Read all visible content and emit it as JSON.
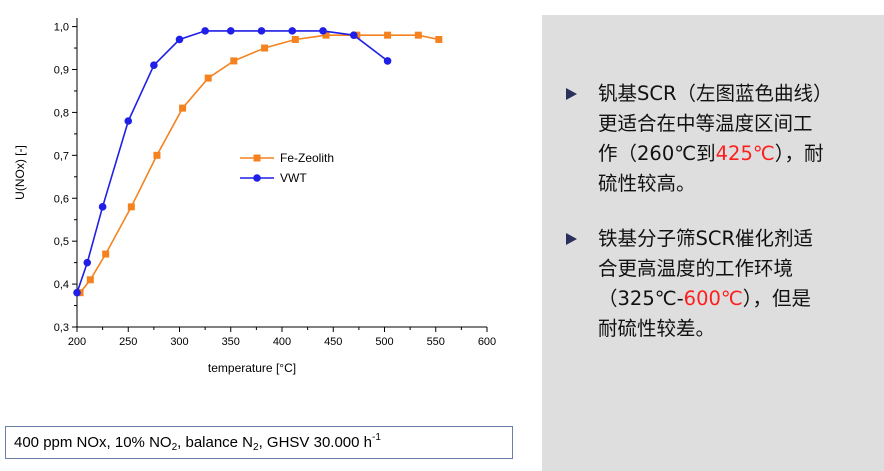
{
  "chart_data": {
    "type": "line",
    "xlabel": "temperature [°C]",
    "ylabel": "U(NOx) [-]",
    "xlim": [
      200,
      600
    ],
    "ylim": [
      0.3,
      1.0
    ],
    "xticks": [
      "200",
      "250",
      "300",
      "350",
      "400",
      "450",
      "500",
      "550",
      "600"
    ],
    "yticks": [
      "0,3",
      "0,4",
      "0,5",
      "0,6",
      "0,7",
      "0,8",
      "0,9",
      "1,0"
    ],
    "grid": false,
    "legend_position": "center",
    "series": [
      {
        "name": "Fe-Zeolith",
        "color": "#f5821f",
        "marker": "square",
        "x": [
          203,
          213,
          228,
          253,
          278,
          303,
          328,
          353,
          383,
          413,
          443,
          473,
          503,
          533,
          553
        ],
        "y": [
          0.38,
          0.41,
          0.47,
          0.58,
          0.7,
          0.81,
          0.88,
          0.92,
          0.95,
          0.97,
          0.98,
          0.98,
          0.98,
          0.98,
          0.97
        ]
      },
      {
        "name": "VWT",
        "color": "#1f1fe8",
        "marker": "circle",
        "x": [
          200,
          210,
          225,
          250,
          275,
          300,
          325,
          350,
          380,
          410,
          440,
          470,
          503
        ],
        "y": [
          0.38,
          0.45,
          0.58,
          0.78,
          0.91,
          0.97,
          0.99,
          0.99,
          0.99,
          0.99,
          0.99,
          0.98,
          0.92
        ]
      }
    ]
  },
  "conditions": {
    "p1": "400 ppm NOx, 10% NO",
    "s1": "2",
    "p2": ", balance N",
    "s2": "2",
    "p3": ", GHSV 30.000 h",
    "sup": "-1"
  },
  "bullets": {
    "b1": {
      "line1": "钒基SCR（左图蓝色曲线）",
      "line2": "更适合在中等温度区间工",
      "line3a": "作（260℃到",
      "line3red": "425℃",
      "line3b": "），耐",
      "line4": "硫性较高。"
    },
    "b2": {
      "line1": "铁基分子筛SCR催化剂适",
      "line2": "合更高温度的工作环境",
      "line3a": "（325℃-",
      "line3red": "600℃",
      "line3b": "），但是",
      "line4": "耐硫性较差。"
    }
  },
  "colors": {
    "panel": "#dedede",
    "accent_red": "#ff1e1e",
    "marker": "#2a2f5c"
  }
}
